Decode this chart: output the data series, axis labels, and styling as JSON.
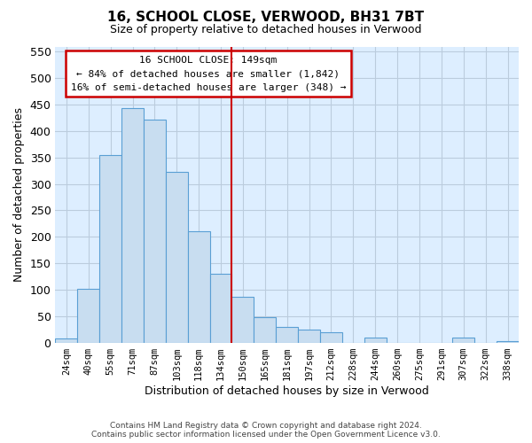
{
  "title": "16, SCHOOL CLOSE, VERWOOD, BH31 7BT",
  "subtitle": "Size of property relative to detached houses in Verwood",
  "xlabel": "Distribution of detached houses by size in Verwood",
  "ylabel": "Number of detached properties",
  "bar_labels": [
    "24sqm",
    "40sqm",
    "55sqm",
    "71sqm",
    "87sqm",
    "103sqm",
    "118sqm",
    "134sqm",
    "150sqm",
    "165sqm",
    "181sqm",
    "197sqm",
    "212sqm",
    "228sqm",
    "244sqm",
    "260sqm",
    "275sqm",
    "291sqm",
    "307sqm",
    "322sqm",
    "338sqm"
  ],
  "bar_values": [
    7,
    101,
    354,
    444,
    422,
    323,
    210,
    130,
    86,
    48,
    29,
    25,
    20,
    0,
    9,
    0,
    0,
    0,
    9,
    0,
    2
  ],
  "bar_color": "#c8ddf0",
  "bar_edge_color": "#5a9fd4",
  "property_line_label": "16 SCHOOL CLOSE: 149sqm",
  "annotation_line1": "← 84% of detached houses are smaller (1,842)",
  "annotation_line2": "16% of semi-detached houses are larger (348) →",
  "ylim": [
    0,
    560
  ],
  "annotation_box_color": "#ffffff",
  "annotation_box_edge": "#cc0000",
  "vline_color": "#cc0000",
  "plot_bg_color": "#ddeeff",
  "footer_line1": "Contains HM Land Registry data © Crown copyright and database right 2024.",
  "footer_line2": "Contains public sector information licensed under the Open Government Licence v3.0.",
  "grid_color": "#bbccdd"
}
